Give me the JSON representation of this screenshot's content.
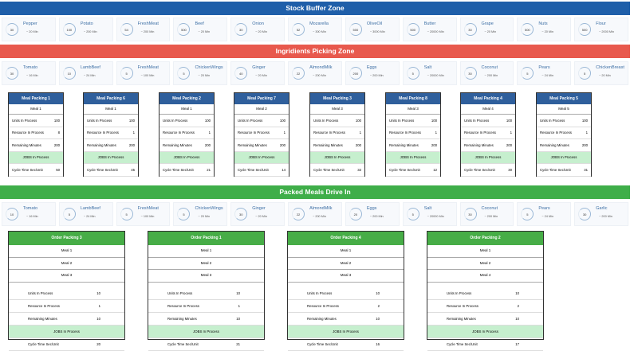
{
  "zones": {
    "stock": "Stock Buffer Zone",
    "picking": "Ingridients Picking Zone",
    "packed": "Packed Meals Drive In"
  },
  "colors": {
    "stock_banner": "#1f5fa9",
    "picking_banner": "#e8594d",
    "packed_banner": "#3fae49",
    "meal_header": "#2f5f9c",
    "order_header": "#47ad47",
    "jobs_row": "#c6efce"
  },
  "stock_items": [
    {
      "name": "Pepper",
      "count": "30",
      "time": "~ 20 Min"
    },
    {
      "name": "Potato",
      "count": "100",
      "time": "~ 200 Min"
    },
    {
      "name": "FreshMeat",
      "count": "54",
      "time": "~ 200 Min"
    },
    {
      "name": "Beef",
      "count": "500",
      "time": "~ 20 Min"
    },
    {
      "name": "Onion",
      "count": "30",
      "time": "~ 20 Min"
    },
    {
      "name": "Mozarella",
      "count": "52",
      "time": "~ 300 Min"
    },
    {
      "name": "OliveOil",
      "count": "500",
      "time": "~ 3000 Min"
    },
    {
      "name": "Butter",
      "count": "500",
      "time": "~ 20000 Min"
    },
    {
      "name": "Grape",
      "count": "30",
      "time": "~ 20 Min"
    },
    {
      "name": "Nuts",
      "count": "500",
      "time": "~ 20 Min"
    },
    {
      "name": "Flour",
      "count": "500",
      "time": "~ 2000 Min"
    }
  ],
  "picking_items": [
    {
      "name": "Tomato",
      "count": "30",
      "time": "~ 16 Min"
    },
    {
      "name": "LambBeef",
      "count": "10",
      "time": "~ 24 Min"
    },
    {
      "name": "FreshMeat",
      "count": "5",
      "time": "~ 100 Min"
    },
    {
      "name": "ChickenWings",
      "count": "5",
      "time": "~ 20 Min"
    },
    {
      "name": "Ginger",
      "count": "40",
      "time": "~ 20 Min"
    },
    {
      "name": "AlmondMilk",
      "count": "22",
      "time": "~ 200 Min"
    },
    {
      "name": "Eggs",
      "count": "200",
      "time": "~ 200 Min"
    },
    {
      "name": "Salt",
      "count": "5",
      "time": "~ 20000 Min"
    },
    {
      "name": "Coconut",
      "count": "30",
      "time": "~ 200 Min"
    },
    {
      "name": "Pears",
      "count": "5",
      "time": "~ 24 Min"
    },
    {
      "name": "ChickenBreast",
      "count": "5",
      "time": "~ 20 Min"
    }
  ],
  "packed_items": [
    {
      "name": "Tomato",
      "count": "10",
      "time": "~ 16 Min"
    },
    {
      "name": "LambBeef",
      "count": "5",
      "time": "~ 24 Min"
    },
    {
      "name": "FreshMeat",
      "count": "5",
      "time": "~ 100 Min"
    },
    {
      "name": "ChickenWings",
      "count": "5",
      "time": "~ 20 Min"
    },
    {
      "name": "Ginger",
      "count": "30",
      "time": "~ 20 Min"
    },
    {
      "name": "AlmondMilk",
      "count": "22",
      "time": "~ 200 Min"
    },
    {
      "name": "Eggs",
      "count": "20",
      "time": "~ 200 Min"
    },
    {
      "name": "Salt",
      "count": "5",
      "time": "~ 20000 Min"
    },
    {
      "name": "Coconut",
      "count": "30",
      "time": "~ 200 Min"
    },
    {
      "name": "Pears",
      "count": "5",
      "time": "~ 24 Min"
    },
    {
      "name": "Garlic",
      "count": "30",
      "time": "~ 200 Min"
    }
  ],
  "labels": {
    "units": "Units In Process",
    "resource": "Resource In Process",
    "remaining": "Remaining Minutes",
    "jobs": "JOBS In Process",
    "cycle": "Cycle Time Sec/Unit"
  },
  "meal_packings": [
    {
      "title": "Meal Packing 1",
      "meal": "Meal 1",
      "units": "100",
      "resource": "8",
      "remaining": "200",
      "cycle": "50"
    },
    {
      "title": "Meal Packing 6",
      "meal": "Meal 1",
      "units": "100",
      "resource": "1",
      "remaining": "200",
      "cycle": "45"
    },
    {
      "title": "Meal Packing 2",
      "meal": "Meal 1",
      "units": "100",
      "resource": "1",
      "remaining": "200",
      "cycle": "21"
    },
    {
      "title": "Meal Packing 7",
      "meal": "Meal 2",
      "units": "100",
      "resource": "1",
      "remaining": "200",
      "cycle": "14"
    },
    {
      "title": "Meal Packing 3",
      "meal": "Meal 3",
      "units": "100",
      "resource": "1",
      "remaining": "200",
      "cycle": "32"
    },
    {
      "title": "Meal Packing 8",
      "meal": "Meal 3",
      "units": "100",
      "resource": "1",
      "remaining": "200",
      "cycle": "12"
    },
    {
      "title": "Meal Packing 4",
      "meal": "Meal 4",
      "units": "100",
      "resource": "1",
      "remaining": "200",
      "cycle": "30"
    },
    {
      "title": "Meal Packing 5",
      "meal": "Meal 5",
      "units": "100",
      "resource": "1",
      "remaining": "200",
      "cycle": "31"
    }
  ],
  "order_packings": [
    {
      "title": "Order Packing 3",
      "meals": [
        "Meal 1",
        "Meal 2",
        "Meal 3"
      ],
      "units": "10",
      "resource": "1",
      "remaining": "10",
      "cycle": "20"
    },
    {
      "title": "Order Packing 1",
      "meals": [
        "Meal 1",
        "Meal 2",
        "Meal 3"
      ],
      "units": "10",
      "resource": "1",
      "remaining": "10",
      "cycle": "21"
    },
    {
      "title": "Order Packing 4",
      "meals": [
        "Meal 1",
        "Meal 2",
        "Meal 3"
      ],
      "units": "10",
      "resource": "2",
      "remaining": "10",
      "cycle": "16"
    },
    {
      "title": "Order Packing 2",
      "meals": [
        "Meal 1",
        "Meal 2",
        "Meal 4"
      ],
      "units": "10",
      "resource": "2",
      "remaining": "10",
      "cycle": "17"
    }
  ]
}
